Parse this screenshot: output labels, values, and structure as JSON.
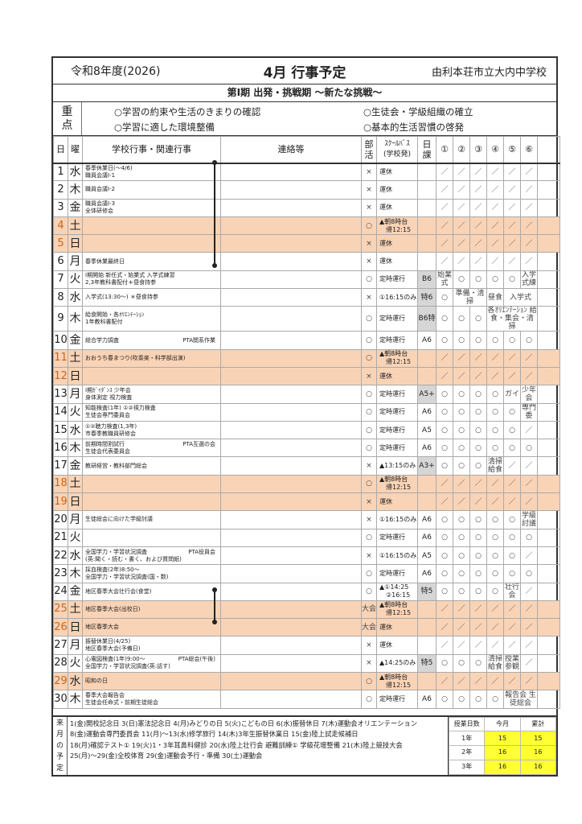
{
  "header": {
    "fiscal_year": "令和8年度(2026)",
    "title": "4月 行事予定",
    "school": "由利本荘市立大内中学校"
  },
  "period": "第Ⅰ期 出発・挑戦期 ～新たな挑戦～",
  "focus": {
    "label": [
      "重",
      "点"
    ],
    "items": [
      "○学習の約束や生活のきまりの確認",
      "○生徒会・学級組織の確立",
      "○学習に適した環境整備",
      "○基本的生活習慣の啓発"
    ]
  },
  "columns": {
    "day": "日",
    "weekday": "曜",
    "events": "学校行事・関連行事",
    "notes": "連絡等",
    "club": [
      "部",
      "活"
    ],
    "bus": [
      "ｽｸｰﾙﾊﾞｽ",
      "(学校発)"
    ],
    "schedule": [
      "日",
      "課"
    ],
    "periods": [
      "①",
      "②",
      "③",
      "④",
      "⑤",
      "⑥"
    ]
  },
  "colors": {
    "weekend": "#f9d3b6",
    "weekend_day_text": "#c8661a",
    "schedule_gray": "#d6d6d6",
    "highlight": "#ffff33"
  },
  "rows": [
    {
      "d": "1",
      "w": "水",
      "ev": [
        "春季休業日(～4/6)",
        "職員会議Ⅰ-1"
      ],
      "club": "×",
      "bus": [
        "運休"
      ],
      "cls": "",
      "p": [
        "／",
        "／",
        "／",
        "／",
        "／",
        "／"
      ]
    },
    {
      "d": "2",
      "w": "木",
      "ev": [
        "職員会議Ⅰ-2"
      ],
      "club": "×",
      "bus": [
        "運休"
      ],
      "cls": "",
      "p": [
        "／",
        "／",
        "／",
        "／",
        "／",
        "／"
      ]
    },
    {
      "d": "3",
      "w": "金",
      "ev": [
        "職員会議Ⅰ-3",
        "全体研修会"
      ],
      "club": "×",
      "bus": [
        "運休"
      ],
      "cls": "",
      "p": [
        "／",
        "／",
        "／",
        "／",
        "／",
        "／"
      ]
    },
    {
      "d": "4",
      "w": "土",
      "we": true,
      "ev": [],
      "club": "○",
      "bus": [
        "▲朝8時台",
        "帰12:15"
      ],
      "cls": "",
      "p": [
        "／",
        "／",
        "／",
        "／",
        "／",
        "／"
      ]
    },
    {
      "d": "5",
      "w": "日",
      "we": true,
      "ev": [],
      "club": "×",
      "bus": [
        "運休"
      ],
      "cls": "",
      "p": [
        "／",
        "／",
        "／",
        "／",
        "／",
        "／"
      ]
    },
    {
      "d": "6",
      "w": "月",
      "ev": [
        "春季休業最終日"
      ],
      "club": "×",
      "bus": [
        "運休"
      ],
      "cls": "",
      "p": [
        "／",
        "／",
        "／",
        "／",
        "／",
        "／"
      ]
    },
    {
      "d": "7",
      "w": "火",
      "ev": [
        "Ⅰ期開始 新任式・始業式 入学式練習",
        "2,3年教科書配付＊昼食持参"
      ],
      "club": "○",
      "bus": [
        "定時運行"
      ],
      "cls": "B6",
      "gray": true,
      "p": [
        "始業式",
        "○",
        "○",
        "○",
        "○",
        "入学式練"
      ]
    },
    {
      "d": "8",
      "w": "水",
      "ev": [
        "入学式(13:30～) ＊昼食持参"
      ],
      "club": "×",
      "bus": [
        "①16:15のみ"
      ],
      "cls": "特6",
      "gray": true,
      "p": [
        "○",
        {
          "t": "準備・清掃",
          "s": 2
        },
        "昼食",
        {
          "t": "入学式",
          "s": 2
        }
      ]
    },
    {
      "d": "9",
      "w": "木",
      "ev": [
        "給食開始・各ｵﾘｴﾝﾃｰｼｮﾝ",
        "1年教科書配付"
      ],
      "club": "○",
      "bus": [
        "定時運行"
      ],
      "cls": "B6特",
      "gray": true,
      "p": [
        "○",
        "○",
        "○",
        {
          "t": "各ｵﾘｴﾝﾃｰｼｮﾝ 給食・集会・清掃",
          "s": 3
        }
      ]
    },
    {
      "d": "10",
      "w": "金",
      "ev": [
        "総合学力調査"
      ],
      "nt_inline": "PTA閲系作業",
      "club": "○",
      "bus": [
        "定時運行"
      ],
      "cls": "A6",
      "p": [
        "○",
        "○",
        "○",
        "○",
        "○",
        "○"
      ]
    },
    {
      "d": "11",
      "w": "土",
      "we": true,
      "ev": [
        "おおうち春まつり(吹奏楽・科学部出演)"
      ],
      "club": "○",
      "bus": [
        "▲朝8時台",
        "帰12:15"
      ],
      "cls": "",
      "p": [
        "／",
        "／",
        "／",
        "／",
        "／",
        "／"
      ]
    },
    {
      "d": "12",
      "w": "日",
      "we": true,
      "ev": [],
      "club": "×",
      "bus": [
        "運休"
      ],
      "cls": "",
      "p": [
        "／",
        "／",
        "／",
        "／",
        "／",
        "／"
      ]
    },
    {
      "d": "13",
      "w": "月",
      "ev": [
        "Ⅰ期ｶﾞｲﾀﾞﾝｽ 少年会",
        "身体測定 視力検査"
      ],
      "club": "○",
      "bus": [
        "定時運行"
      ],
      "cls": "A5+",
      "gray": true,
      "p": [
        "○",
        "○",
        "○",
        "○",
        "ガイ",
        "少年会"
      ]
    },
    {
      "d": "14",
      "w": "火",
      "ev": [
        "知能検査(1年) ①②視力検査",
        "生徒会専門委員会"
      ],
      "club": "○",
      "bus": [
        "定時運行"
      ],
      "cls": "A6",
      "p": [
        "○",
        "○",
        "○",
        "○",
        "○",
        "専門委"
      ]
    },
    {
      "d": "15",
      "w": "水",
      "ev": [
        "①②聴力検査(1,3年)",
        "市春季教職員研修会"
      ],
      "club": "○",
      "bus": [
        "定時運行"
      ],
      "cls": "A5",
      "p": [
        "○",
        "○",
        "○",
        "○",
        "○",
        "／"
      ]
    },
    {
      "d": "16",
      "w": "木",
      "ev": [
        "前期時間割試行",
        "生徒会代表委員会"
      ],
      "nt_inline": "PTA互選の会",
      "club": "○",
      "bus": [
        "定時運行"
      ],
      "cls": "A6",
      "p": [
        "○",
        "○",
        "○",
        "○",
        "○",
        "○"
      ]
    },
    {
      "d": "17",
      "w": "金",
      "ev": [
        "教研経営・教科部門総会"
      ],
      "club": "×",
      "bus": [
        "▲13:15のみ"
      ],
      "cls": "A3+",
      "gray": true,
      "p": [
        "○",
        "○",
        "○",
        "清掃給食",
        "／",
        "／"
      ]
    },
    {
      "d": "18",
      "w": "土",
      "we": true,
      "ev": [],
      "club": "○",
      "bus": [
        "▲朝8時台",
        "帰12:15"
      ],
      "cls": "",
      "p": [
        "／",
        "／",
        "／",
        "／",
        "／",
        "／"
      ]
    },
    {
      "d": "19",
      "w": "日",
      "we": true,
      "ev": [],
      "club": "×",
      "bus": [
        "運休"
      ],
      "cls": "",
      "p": [
        "／",
        "／",
        "／",
        "／",
        "／",
        "／"
      ]
    },
    {
      "d": "20",
      "w": "月",
      "ev": [
        "生徒総会に向けた学級討議"
      ],
      "club": "×",
      "bus": [
        "①16:15のみ"
      ],
      "cls": "A6",
      "p": [
        "○",
        "○",
        "○",
        "○",
        "○",
        "学級討議"
      ]
    },
    {
      "d": "21",
      "w": "火",
      "ev": [],
      "club": "○",
      "bus": [
        "定時運行"
      ],
      "cls": "A6",
      "p": [
        "○",
        "○",
        "○",
        "○",
        "○",
        "○"
      ]
    },
    {
      "d": "22",
      "w": "水",
      "ev": [
        "全国学力・学習状況調査",
        "(英:聞く・読む・書く、および質問紙)"
      ],
      "nt_inline": "PTA役員会",
      "club": "×",
      "bus": [
        "①16:15のみ"
      ],
      "cls": "A5",
      "p": [
        "○",
        "○",
        "○",
        "○",
        "○",
        "／"
      ]
    },
    {
      "d": "23",
      "w": "木",
      "ev": [
        "採血検査(2年)8:50～",
        "全国学力・学習状況調査(国・数)"
      ],
      "club": "○",
      "bus": [
        "定時運行"
      ],
      "cls": "A6",
      "p": [
        "○",
        "○",
        "○",
        "○",
        "○",
        "○"
      ]
    },
    {
      "d": "24",
      "w": "金",
      "ev": [
        "地区春季大会壮行会(食堂)"
      ],
      "club": "○",
      "bus": [
        "▲①14:25",
        "②16:15"
      ],
      "cls": "特5",
      "gray": true,
      "p": [
        "○",
        "○",
        "○",
        "○",
        "壮行会",
        "／"
      ]
    },
    {
      "d": "25",
      "w": "土",
      "we": true,
      "ev": [
        "地区春季大会(出校日)"
      ],
      "club": "大会",
      "bus": [
        "▲朝8時台",
        "帰12:15"
      ],
      "cls": "",
      "p": [
        "／",
        "／",
        "／",
        "／",
        "／",
        "／"
      ]
    },
    {
      "d": "26",
      "w": "日",
      "we": true,
      "ev": [
        "地区春季大会"
      ],
      "club": "大会",
      "bus": [
        "運休"
      ],
      "cls": "",
      "p": [
        "／",
        "／",
        "／",
        "／",
        "／",
        "／"
      ]
    },
    {
      "d": "27",
      "w": "月",
      "ev": [
        "振替休業日(4/25)",
        "地区春季大会(予備日)"
      ],
      "club": "×",
      "bus": [
        "運休"
      ],
      "cls": "",
      "p": [
        "／",
        "／",
        "／",
        "／",
        "／",
        "／"
      ]
    },
    {
      "d": "28",
      "w": "火",
      "ev": [
        "心電図検査(1年)9:00～",
        "全国学力・学習状況調査(英:話す)"
      ],
      "nt_inline": "PTA総会(午後)",
      "club": "×",
      "bus": [
        "▲14:25のみ"
      ],
      "cls": "特5",
      "gray": true,
      "p": [
        "○",
        "○",
        "○",
        "清掃給食",
        "授業参観",
        "／"
      ]
    },
    {
      "d": "29",
      "w": "水",
      "we": true,
      "ev": [
        "昭和の日"
      ],
      "club": "○",
      "bus": [
        "▲朝8時台",
        "帰12:15"
      ],
      "cls": "",
      "p": [
        "／",
        "／",
        "／",
        "／",
        "／",
        "／"
      ]
    },
    {
      "d": "30",
      "w": "木",
      "ev": [
        "春季大会報告会",
        "生徒会任命式・前期生徒総会"
      ],
      "club": "○",
      "bus": [
        "定時運行"
      ],
      "cls": "A6",
      "p": [
        "○",
        "○",
        "○",
        "○",
        {
          "t": "報告会 生徒総会",
          "s": 2
        }
      ]
    }
  ],
  "next_month": {
    "label": [
      "来",
      "月",
      "の",
      "予",
      "定"
    ],
    "lines": [
      "1(金)開校記念日 3(日)憲法記念日 4(月)みどりの日 5(火)こどもの日 6(水)振替休日 7(木)運動会オリエンテーション",
      "8(金)運動会専門委員会 11(月)～13(水)修学旅行 14(木)3年生振替休業日 15(金)陸上試走候補日",
      "18(月)確認テスト① 19(火)1・3年耳鼻科健診 20(水)陸上壮行会 避難訓練① 学級花壇整備 21(木)陸上競技大会",
      "25(月)～29(金)全校体育 29(金)運動会予行・準備 30(土)運動会"
    ]
  },
  "class_days": {
    "headers": [
      "授業日数",
      "今月",
      "累計"
    ],
    "rows": [
      [
        "1年",
        "15",
        "15"
      ],
      [
        "2年",
        "16",
        "16"
      ],
      [
        "3年",
        "16",
        "16"
      ]
    ]
  }
}
